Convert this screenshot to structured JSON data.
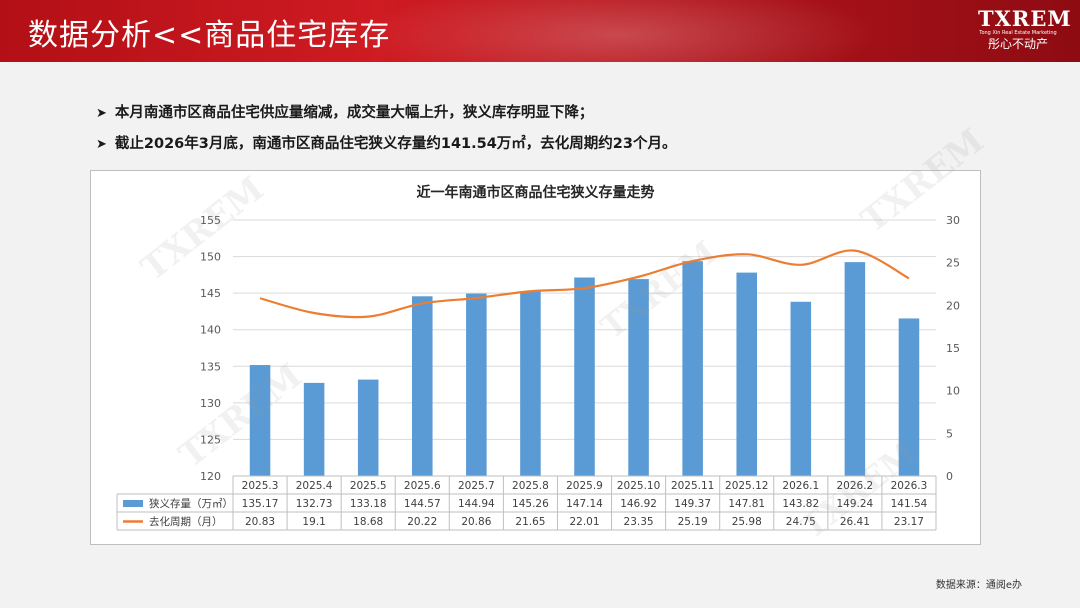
{
  "header": {
    "title": "数据分析<<商品住宅库存",
    "logo_main": "TXREM",
    "logo_en": "Tong Xin Real Estate Marketing",
    "logo_cn": "彤心不动产"
  },
  "bullets": [
    "本月南通市区商品住宅供应量缩减，成交量大幅上升，狭义库存明显下降；",
    "截止2026年3月底，南通市区商品住宅狭义存量约141.54万㎡，去化周期约23个月。"
  ],
  "bullet_marker": "➤",
  "chart_data": {
    "type": "bar",
    "title": "近一年南通市区商品住宅狭义存量走势",
    "categories": [
      "2025.3",
      "2025.4",
      "2025.5",
      "2025.6",
      "2025.7",
      "2025.8",
      "2025.9",
      "2025.10",
      "2025.11",
      "2025.12",
      "2026.1",
      "2026.2",
      "2026.3"
    ],
    "series": [
      {
        "name": "狭义存量（万㎡）",
        "type": "bar",
        "axis": "left",
        "color": "#5b9bd5",
        "values": [
          135.17,
          132.73,
          133.18,
          144.57,
          144.94,
          145.26,
          147.14,
          146.92,
          149.37,
          147.81,
          143.82,
          149.24,
          141.54
        ]
      },
      {
        "name": "去化周期（月）",
        "type": "line",
        "axis": "right",
        "color": "#ed7d31",
        "values": [
          20.83,
          19.1,
          18.68,
          20.22,
          20.86,
          21.65,
          22.01,
          23.35,
          25.19,
          25.98,
          24.75,
          26.41,
          23.17
        ]
      }
    ],
    "ylim_left": [
      120,
      155
    ],
    "yticks_left": [
      120,
      125,
      130,
      135,
      140,
      145,
      150,
      155
    ],
    "ylim_right": [
      0,
      30
    ],
    "yticks_right": [
      0,
      5,
      10,
      15,
      20,
      25,
      30
    ],
    "grid": true,
    "legend": "data-table"
  },
  "watermark_text": "TXREM",
  "source": "数据来源：通阅e办"
}
